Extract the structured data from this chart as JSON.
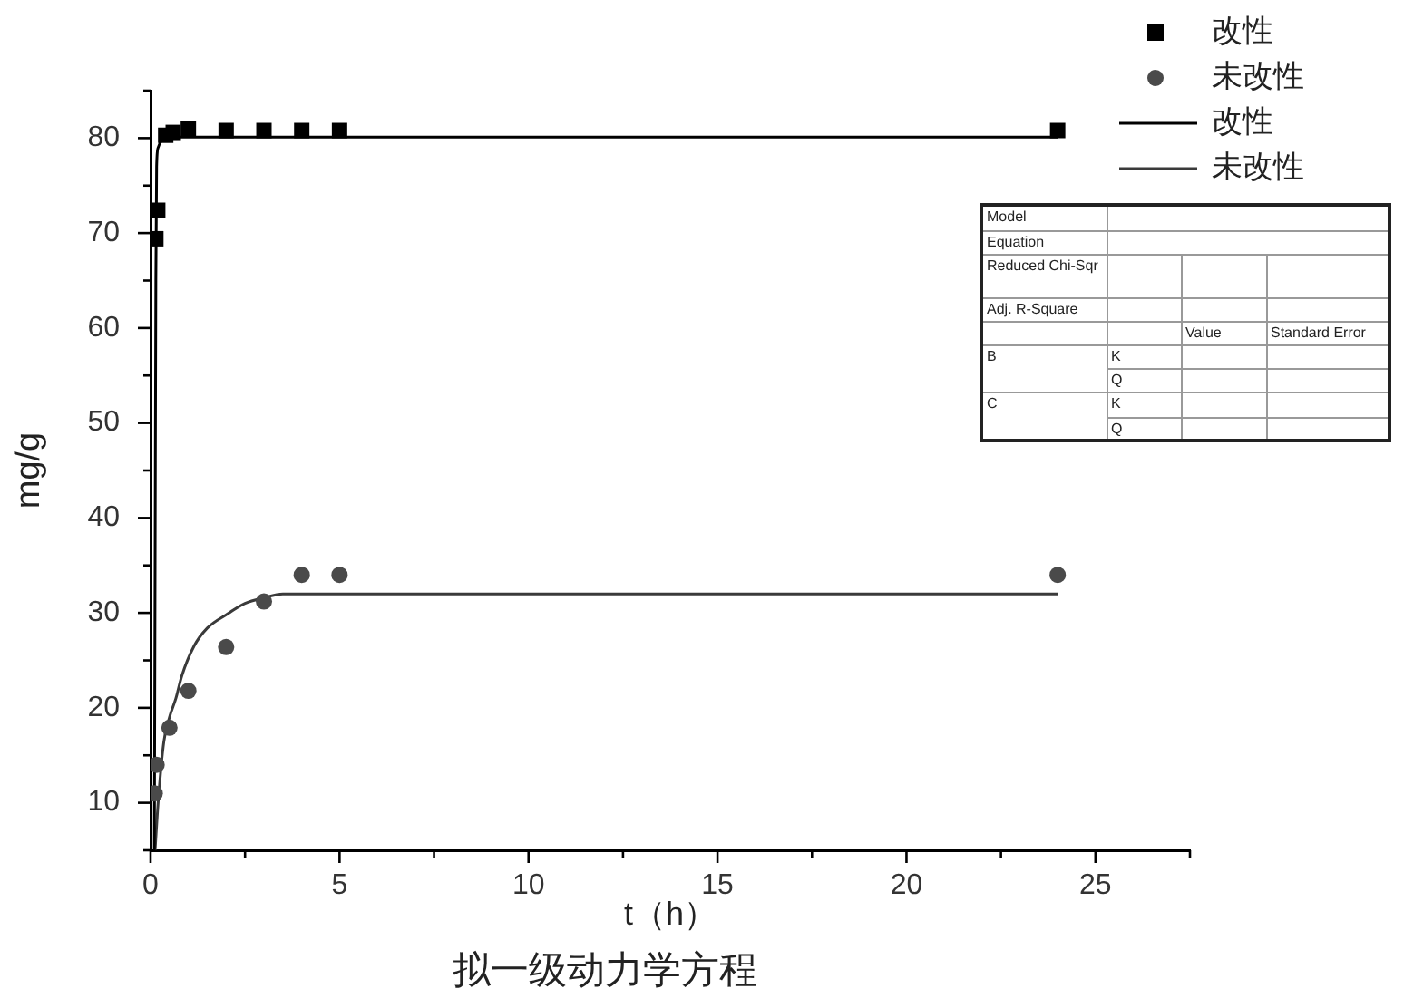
{
  "chart_data": {
    "type": "scatter",
    "title": "拟一级动力学方程",
    "xlabel": "t（h）",
    "ylabel": "mg/g",
    "xlim": [
      0,
      27.5
    ],
    "xticks": [
      0,
      {
        "value": 2.5,
        "label": null
      },
      5,
      {
        "value": 7.5,
        "label": null
      },
      10,
      {
        "value": 12.5,
        "label": null
      },
      15,
      {
        "value": 17.5,
        "label": null
      },
      20,
      {
        "value": 22.5,
        "label": null
      },
      25,
      {
        "value": 27.5,
        "label": null
      }
    ],
    "ylim": [
      5,
      85
    ],
    "yticks": [
      {
        "value": 5,
        "label": null
      },
      10,
      {
        "value": 15,
        "label": null
      },
      20,
      {
        "value": 25,
        "label": null
      },
      30,
      {
        "value": 35,
        "label": null
      },
      40,
      {
        "value": 45,
        "label": null
      },
      50,
      {
        "value": 55,
        "label": null
      },
      60,
      {
        "value": 65,
        "label": null
      },
      70,
      {
        "value": 75,
        "label": null
      },
      80,
      {
        "value": 85,
        "label": null
      }
    ],
    "legend": "top right",
    "series": [
      {
        "name": "改性",
        "type": "scatter",
        "marker": "square",
        "color": "#000000",
        "x": [
          0.14,
          0.19,
          0.4,
          0.6,
          1,
          2,
          3,
          4,
          5,
          24
        ],
        "values": [
          69.4,
          72.4,
          80.3,
          80.6,
          81,
          80.8,
          80.8,
          80.8,
          80.8,
          80.8
        ]
      },
      {
        "name": "未改性",
        "type": "scatter",
        "marker": "circle",
        "color": "#4a4a4a",
        "x": [
          0.11,
          0.16,
          0.5,
          1,
          2,
          3,
          4,
          5,
          24
        ],
        "values": [
          11,
          14,
          17.9,
          21.8,
          26.4,
          31.2,
          34,
          34,
          34
        ]
      },
      {
        "name": "改性",
        "type": "line",
        "marker": "none",
        "color": "#000000",
        "x": [
          0.1,
          0.12,
          0.14,
          0.16,
          0.2,
          0.3,
          0.5,
          24
        ],
        "values": [
          5,
          35,
          65,
          77,
          79,
          79.8,
          80.1,
          80.1
        ]
      },
      {
        "name": "未改性",
        "type": "line",
        "marker": "none",
        "color": "#3a3a3a",
        "x": [
          0.12,
          0.2,
          0.35,
          0.5,
          0.67,
          0.83,
          1.15,
          1.5,
          2,
          2.5,
          3,
          3.5,
          24
        ],
        "values": [
          5,
          10,
          16.4,
          19,
          21,
          23.4,
          26.5,
          28.4,
          29.8,
          31,
          31.6,
          32,
          32
        ]
      }
    ],
    "annotations": [
      "Model",
      "Equation",
      "Reduced Chi-Sqr",
      "Adj. R-Square",
      "Value",
      "Standard Error",
      "B",
      "K",
      "Q",
      "C",
      "K",
      "Q"
    ]
  }
}
